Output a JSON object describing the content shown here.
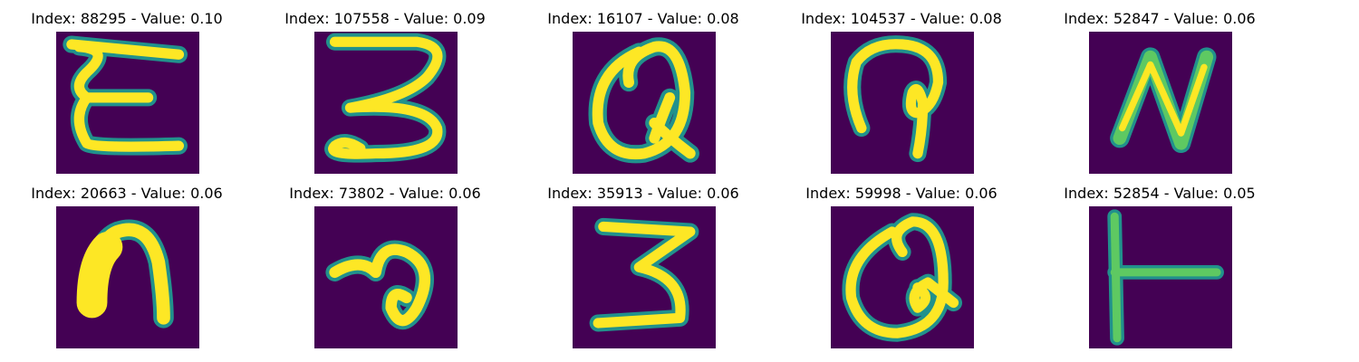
{
  "colors": {
    "background": "#440154",
    "stroke_edge": "#21918c",
    "stroke_mid": "#5ec962",
    "stroke_core": "#fde725"
  },
  "panels": [
    {
      "title": "Index: 88295 - Value: 0.10",
      "glyph": "Ɛ"
    },
    {
      "title": "Index: 107558 - Value: 0.09",
      "glyph": "3"
    },
    {
      "title": "Index: 16107 - Value: 0.08",
      "glyph": "Q"
    },
    {
      "title": "Index: 104537 - Value: 0.08",
      "glyph": "?"
    },
    {
      "title": "Index: 52847 - Value: 0.06",
      "glyph": "N"
    },
    {
      "title": "Index: 20663 - Value: 0.06",
      "glyph": "n"
    },
    {
      "title": "Index: 73802 - Value: 0.06",
      "glyph": "a"
    },
    {
      "title": "Index: 35913 - Value: 0.06",
      "glyph": "3"
    },
    {
      "title": "Index: 59998 - Value: 0.06",
      "glyph": "Q"
    },
    {
      "title": "Index: 52854 - Value: 0.05",
      "glyph": "T"
    }
  ]
}
